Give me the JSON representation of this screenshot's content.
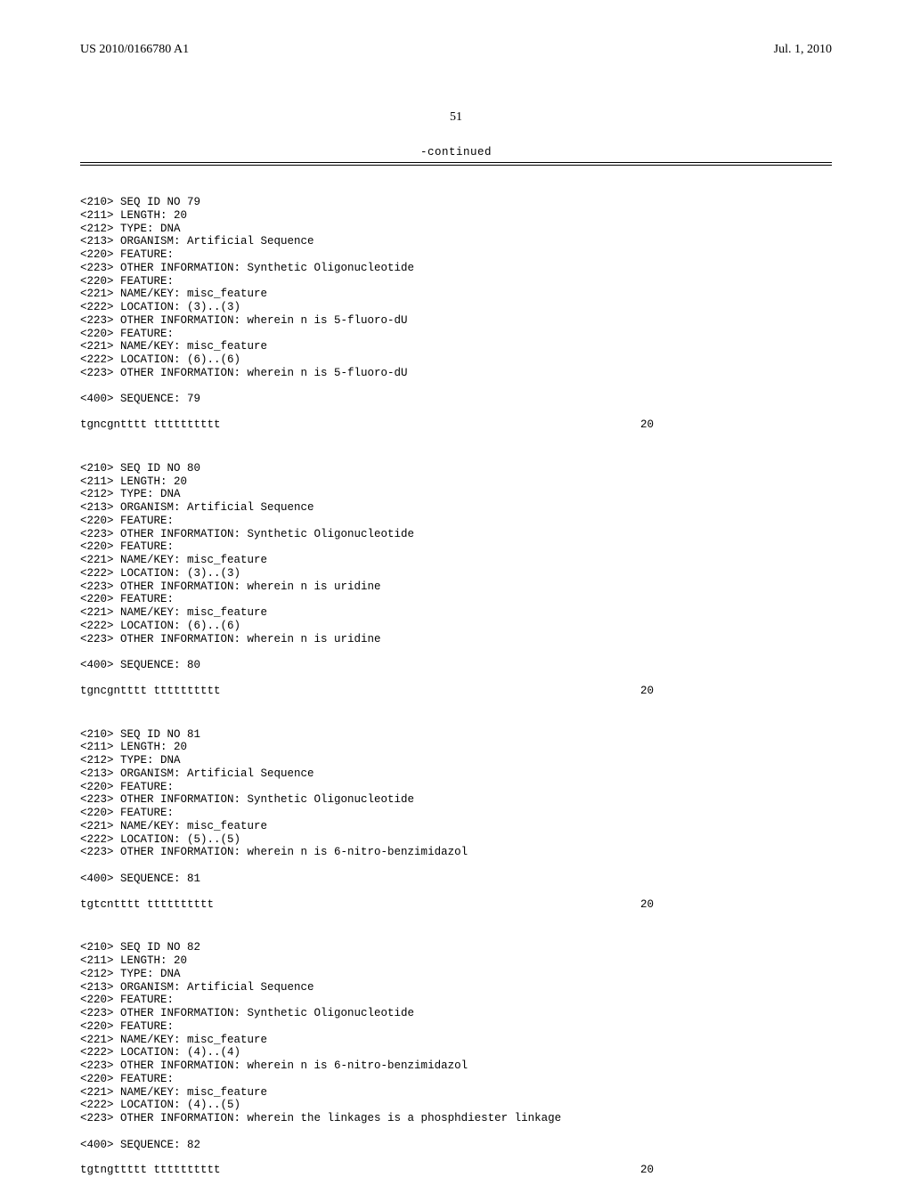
{
  "header": {
    "left": "US 2010/0166780 A1",
    "right": "Jul. 1, 2010"
  },
  "page_number": "51",
  "continued": "-continued",
  "blocks": [
    {
      "lines": [
        "<210> SEQ ID NO 79",
        "<211> LENGTH: 20",
        "<212> TYPE: DNA",
        "<213> ORGANISM: Artificial Sequence",
        "<220> FEATURE:",
        "<223> OTHER INFORMATION: Synthetic Oligonucleotide",
        "<220> FEATURE:",
        "<221> NAME/KEY: misc_feature",
        "<222> LOCATION: (3)..(3)",
        "<223> OTHER INFORMATION: wherein n is 5-fluoro-dU",
        "<220> FEATURE:",
        "<221> NAME/KEY: misc_feature",
        "<222> LOCATION: (6)..(6)",
        "<223> OTHER INFORMATION: wherein n is 5-fluoro-dU",
        "",
        "<400> SEQUENCE: 79"
      ],
      "sequence": "tgncgntttt tttttttttt",
      "seqnum": "20"
    },
    {
      "lines": [
        "<210> SEQ ID NO 80",
        "<211> LENGTH: 20",
        "<212> TYPE: DNA",
        "<213> ORGANISM: Artificial Sequence",
        "<220> FEATURE:",
        "<223> OTHER INFORMATION: Synthetic Oligonucleotide",
        "<220> FEATURE:",
        "<221> NAME/KEY: misc_feature",
        "<222> LOCATION: (3)..(3)",
        "<223> OTHER INFORMATION: wherein n is uridine",
        "<220> FEATURE:",
        "<221> NAME/KEY: misc_feature",
        "<222> LOCATION: (6)..(6)",
        "<223> OTHER INFORMATION: wherein n is uridine",
        "",
        "<400> SEQUENCE: 80"
      ],
      "sequence": "tgncgntttt tttttttttt",
      "seqnum": "20"
    },
    {
      "lines": [
        "<210> SEQ ID NO 81",
        "<211> LENGTH: 20",
        "<212> TYPE: DNA",
        "<213> ORGANISM: Artificial Sequence",
        "<220> FEATURE:",
        "<223> OTHER INFORMATION: Synthetic Oligonucleotide",
        "<220> FEATURE:",
        "<221> NAME/KEY: misc_feature",
        "<222> LOCATION: (5)..(5)",
        "<223> OTHER INFORMATION: wherein n is 6-nitro-benzimidazol",
        "",
        "<400> SEQUENCE: 81"
      ],
      "sequence": "tgtcntttt tttttttttt",
      "seqnum": "20"
    },
    {
      "lines": [
        "<210> SEQ ID NO 82",
        "<211> LENGTH: 20",
        "<212> TYPE: DNA",
        "<213> ORGANISM: Artificial Sequence",
        "<220> FEATURE:",
        "<223> OTHER INFORMATION: Synthetic Oligonucleotide",
        "<220> FEATURE:",
        "<221> NAME/KEY: misc_feature",
        "<222> LOCATION: (4)..(4)",
        "<223> OTHER INFORMATION: wherein n is 6-nitro-benzimidazol",
        "<220> FEATURE:",
        "<221> NAME/KEY: misc_feature",
        "<222> LOCATION: (4)..(5)",
        "<223> OTHER INFORMATION: wherein the linkages is a phosphdiester linkage",
        "",
        "<400> SEQUENCE: 82"
      ],
      "sequence": "tgtngttttt tttttttttt",
      "seqnum": "20"
    }
  ]
}
